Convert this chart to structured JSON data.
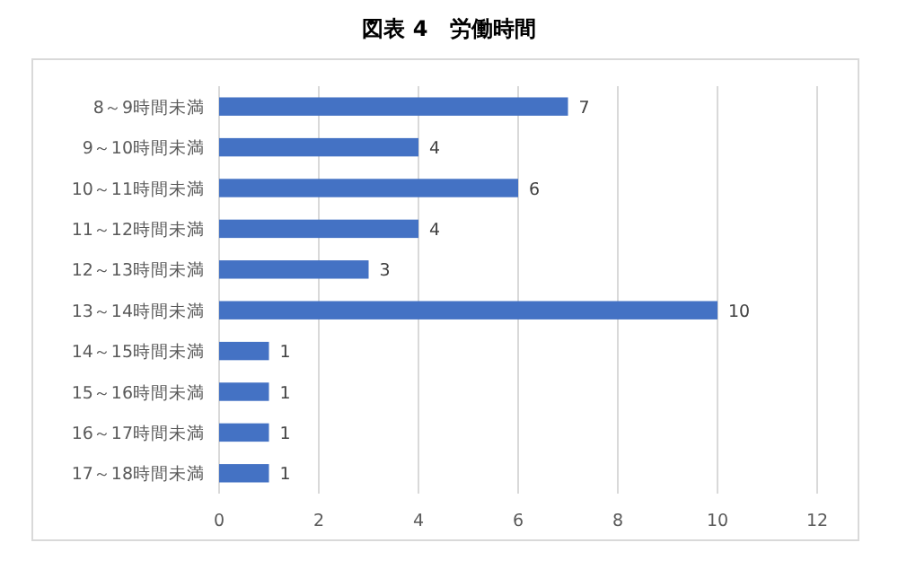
{
  "chart_data": {
    "type": "bar",
    "title": "図表 4　労働時間",
    "orientation": "horizontal",
    "categories": [
      "8～9時間未満",
      "9～10時間未満",
      "10～11時間未満",
      "11～12時間未満",
      "12～13時間未満",
      "13～14時間未満",
      "14～15時間未満",
      "15～16時間未満",
      "16～17時間未満",
      "17～18時間未満"
    ],
    "values": [
      7,
      4,
      6,
      4,
      3,
      10,
      1,
      1,
      1,
      1
    ],
    "color": "#4472c4",
    "xlim": [
      0,
      12
    ],
    "xticks": [
      0,
      2,
      4,
      6,
      8,
      10,
      12
    ],
    "grid": "x",
    "data_labels": true
  }
}
